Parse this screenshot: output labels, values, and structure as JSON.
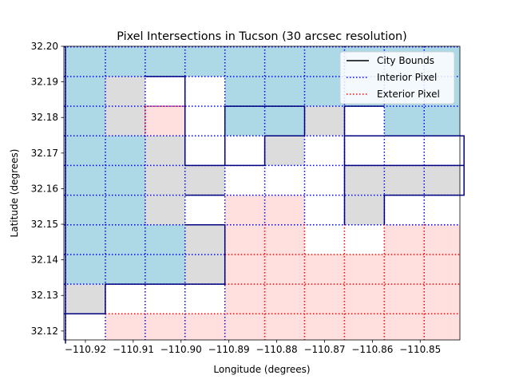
{
  "chart_data": {
    "type": "heatmap",
    "title": "Pixel Intersections in Tucson (30 arcsec resolution)",
    "xlabel": "Longitude (degrees)",
    "ylabel": "Latitude (degrees)",
    "xlim": [
      -110.9245,
      -110.8417
    ],
    "ylim": [
      32.1175,
      32.2
    ],
    "x_ticks": [
      -110.92,
      -110.91,
      -110.9,
      -110.89,
      -110.88,
      -110.87,
      -110.86,
      -110.85
    ],
    "x_tick_labels": [
      "−110.92",
      "−110.91",
      "−110.90",
      "−110.89",
      "−110.88",
      "−110.87",
      "−110.86",
      "−110.85"
    ],
    "y_ticks": [
      32.12,
      32.13,
      32.14,
      32.15,
      32.16,
      32.17,
      32.18,
      32.19,
      32.2
    ],
    "y_tick_labels": [
      "32.12",
      "32.13",
      "32.14",
      "32.15",
      "32.16",
      "32.17",
      "32.18",
      "32.19",
      "32.20"
    ],
    "grid_lon_edges": [
      -110.92417,
      -110.91583,
      -110.9075,
      -110.89917,
      -110.89083,
      -110.8825,
      -110.87417,
      -110.86583,
      -110.8575,
      -110.84917,
      -110.84083
    ],
    "grid_lat_edges": [
      32.1165,
      32.12483,
      32.13317,
      32.1415,
      32.14983,
      32.15817,
      32.1665,
      32.17483,
      32.18317,
      32.1915,
      32.19983
    ],
    "cell_codes": [
      "I",
      "G",
      "R",
      "W"
    ],
    "cells_by_row_top_to_bottom": [
      [
        "I",
        "I",
        "I",
        "I",
        "I",
        "I",
        "I",
        "I",
        "I",
        "I"
      ],
      [
        "I",
        "G",
        "W",
        "W",
        "I",
        "I",
        "I",
        "I",
        "I",
        "I"
      ],
      [
        "I",
        "G",
        "R",
        "W",
        "I",
        "I",
        "G",
        "W",
        "I",
        "I"
      ],
      [
        "I",
        "I",
        "G",
        "W",
        "W",
        "G",
        "W",
        "W",
        "W",
        "W"
      ],
      [
        "I",
        "I",
        "G",
        "G",
        "W",
        "W",
        "W",
        "G",
        "G",
        "G"
      ],
      [
        "I",
        "I",
        "G",
        "W",
        "R",
        "R",
        "W",
        "G",
        "W",
        "W"
      ],
      [
        "I",
        "I",
        "I",
        "G",
        "R",
        "R",
        "W",
        "W",
        "R",
        "R"
      ],
      [
        "I",
        "I",
        "I",
        "G",
        "R",
        "R",
        "R",
        "R",
        "R",
        "R"
      ],
      [
        "G",
        "W",
        "W",
        "W",
        "R",
        "R",
        "R",
        "R",
        "R",
        "R"
      ],
      [
        "W",
        "R",
        "R",
        "R",
        "R",
        "R",
        "R",
        "R",
        "R",
        "R"
      ]
    ],
    "colors": {
      "I": "#add8e6",
      "G": "#dcdcdc",
      "R": "#ffe0de",
      "W": "#ffffff"
    },
    "interior_outline_color": "#0000ff",
    "exterior_outline_color": "#ff0000",
    "exterior_pixels_below_lat": 32.15,
    "exterior_pixels_extra": [
      [
        32.175,
        32.18317,
        -110.9075,
        -110.89917
      ]
    ],
    "city_bounds": [
      [
        [
          -110.92417,
          32.2
        ],
        [
          -110.92417,
          32.1165
        ]
      ],
      [
        [
          -110.92417,
          32.12483
        ],
        [
          -110.91583,
          32.12483
        ],
        [
          -110.91583,
          32.13317
        ],
        [
          -110.89083,
          32.13317
        ],
        [
          -110.89083,
          32.14983
        ],
        [
          -110.89917,
          32.14983
        ]
      ],
      [
        [
          -110.9075,
          32.1915
        ],
        [
          -110.89917,
          32.1915
        ],
        [
          -110.89917,
          32.1665
        ],
        [
          -110.89083,
          32.1665
        ]
      ],
      [
        [
          -110.89083,
          32.18317
        ],
        [
          -110.87417,
          32.18317
        ],
        [
          -110.87417,
          32.17483
        ],
        [
          -110.8825,
          32.17483
        ],
        [
          -110.8825,
          32.1665
        ],
        [
          -110.89083,
          32.1665
        ],
        [
          -110.89083,
          32.18317
        ]
      ],
      [
        [
          -110.86583,
          32.14983
        ],
        [
          -110.86583,
          32.17483
        ],
        [
          -110.84083,
          32.17483
        ],
        [
          -110.84083,
          32.15817
        ],
        [
          -110.8575,
          32.15817
        ],
        [
          -110.8575,
          32.14983
        ]
      ],
      [
        [
          -110.8575,
          32.18317
        ],
        [
          -110.86583,
          32.18317
        ],
        [
          -110.86583,
          32.175
        ]
      ],
      [
        [
          -110.89917,
          32.15817
        ],
        [
          -110.89083,
          32.15817
        ]
      ],
      [
        [
          -110.86583,
          32.1665
        ],
        [
          -110.84083,
          32.1665
        ]
      ]
    ],
    "legend": {
      "position": "upper right",
      "entries": [
        {
          "label": "City Bounds",
          "style": "solid",
          "color": "#000000"
        },
        {
          "label": "Interior Pixel",
          "style": "dotted",
          "color": "#0000ff"
        },
        {
          "label": "Exterior Pixel",
          "style": "dotted",
          "color": "#ff0000"
        }
      ]
    },
    "grid": false
  }
}
